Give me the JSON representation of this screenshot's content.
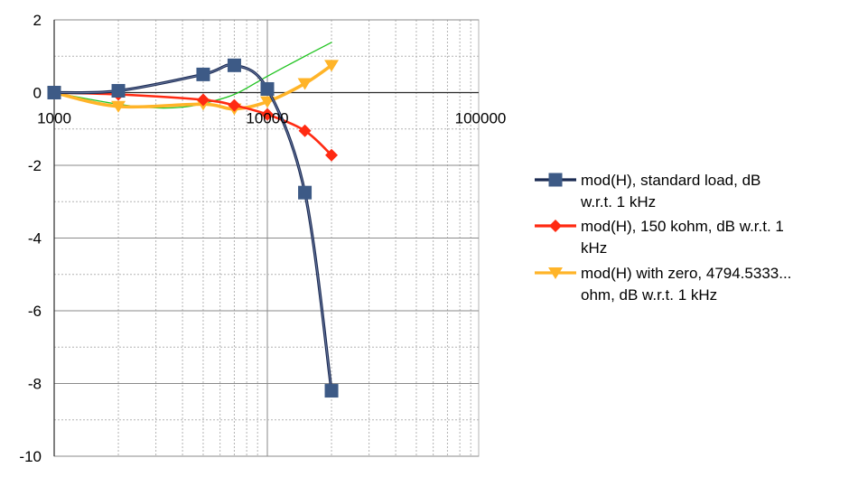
{
  "chart_data": {
    "type": "line",
    "x_scale": "log",
    "xlim": [
      1000,
      200000
    ],
    "ylim": [
      -10,
      2
    ],
    "grid": true,
    "legend_position": "right",
    "x_tick_labels": [
      "1000",
      "10000",
      "100000"
    ],
    "y_tick_labels": [
      "2",
      "0",
      "-2",
      "-4",
      "-6",
      "-8",
      "-10"
    ],
    "series": [
      {
        "name": "mod(H), standard load, dB w.r.t. 1 kHz",
        "name_lines": [
          "mod(H), standard load, dB",
          "w.r.t. 1 kHz"
        ],
        "color": "#1a2a52",
        "marker": "square",
        "x": [
          1000,
          2000,
          5000,
          7000,
          10000,
          15000,
          20000
        ],
        "y": [
          0,
          0.05,
          0.5,
          0.75,
          0.1,
          -2.75,
          -8.2
        ]
      },
      {
        "name": "mod(H), 150 kohm, dB w.r.t. 1 kHz",
        "name_lines": [
          "mod(H), 150 kohm, dB w.r.t. 1",
          "kHz"
        ],
        "color": "#ff2a12",
        "marker": "diamond",
        "x": [
          1000,
          2000,
          5000,
          7000,
          10000,
          15000,
          20000
        ],
        "y": [
          0,
          -0.05,
          -0.2,
          -0.35,
          -0.6,
          -1.05,
          -1.72
        ]
      },
      {
        "name": "mod(H) with zero, 4794.5333... ohm, dB w.r.t. 1 kHz",
        "name_lines": [
          "mod(H) with zero, 4794.5333...",
          "ohm, dB w.r.t. 1 kHz"
        ],
        "color": "#ffb428",
        "marker": "triangle-down",
        "x": [
          1000,
          2000,
          5000,
          7000,
          10000,
          15000,
          20000
        ],
        "y": [
          0,
          -0.38,
          -0.32,
          -0.45,
          -0.25,
          0.25,
          0.75
        ]
      },
      {
        "color": "#22c422",
        "marker": "none",
        "x": [
          1000,
          2000,
          3000,
          4000,
          5000,
          7000,
          10000,
          15000,
          20000
        ],
        "y": [
          0,
          -0.32,
          -0.42,
          -0.4,
          -0.3,
          -0.05,
          0.45,
          1.0,
          1.38
        ]
      }
    ]
  }
}
